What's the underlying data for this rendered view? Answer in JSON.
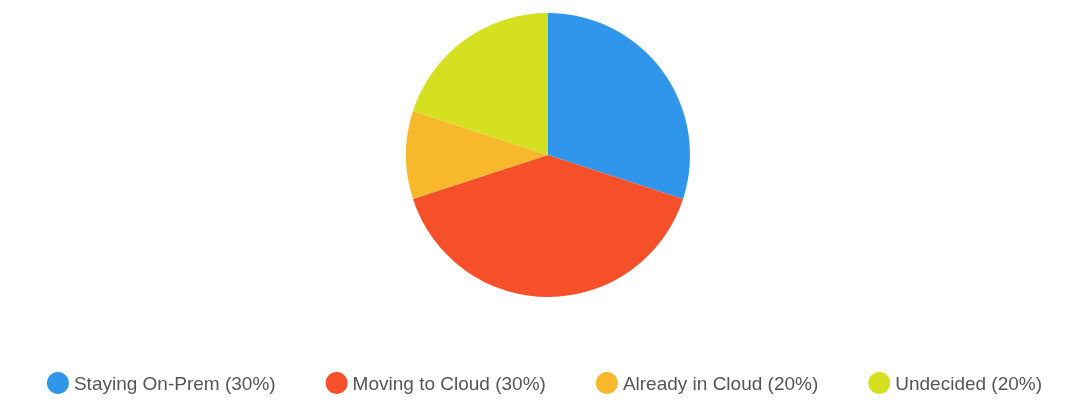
{
  "chart_data": {
    "type": "pie",
    "categories": [
      "Staying On-Prem (30%)",
      "Moving to Cloud (30%)",
      "Already in Cloud (20%)",
      "Undecided (20%)"
    ],
    "values": [
      30,
      40,
      10,
      20
    ],
    "colors": [
      "#2f96eb",
      "#f5502a",
      "#f7b92b",
      "#d5e021"
    ],
    "legend": "bottom"
  }
}
